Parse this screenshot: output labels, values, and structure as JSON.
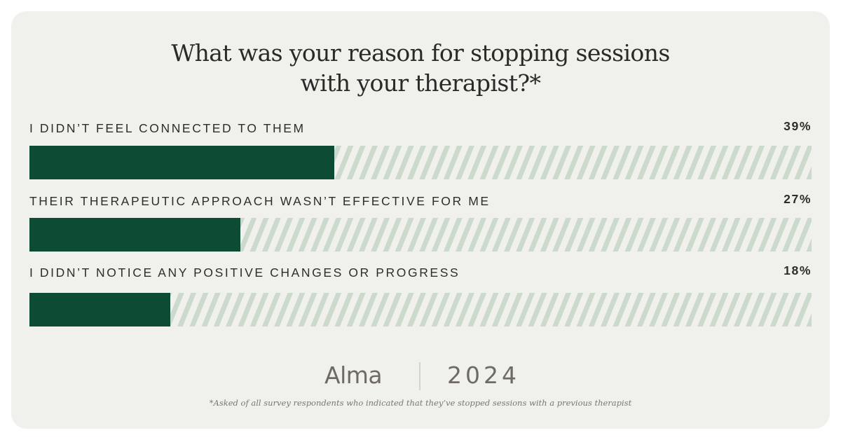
{
  "card": {
    "background": "#f0f1ed"
  },
  "title": {
    "line1": "What was your reason for stopping sessions",
    "line2": "with your therapist?*"
  },
  "colors": {
    "fill": "#0d4b35",
    "stripe": "#cbdacc"
  },
  "rows": [
    {
      "label": "I DIDN’T FEEL CONNECTED TO THEM",
      "value": "39%",
      "pct": 39
    },
    {
      "label": "THEIR THERAPEUTIC APPROACH WASN’T EFFECTIVE FOR ME",
      "value": "27%",
      "pct": 27
    },
    {
      "label": "I DIDN’T NOTICE ANY POSITIVE CHANGES OR PROGRESS",
      "value": "18%",
      "pct": 18
    }
  ],
  "footer": {
    "brand": "Alma",
    "year": "2024",
    "footnote": "*Asked of all survey respondents who indicated that they’ve stopped sessions with a previous therapist"
  },
  "chart_data": {
    "type": "bar",
    "orientation": "horizontal",
    "title": "What was your reason for stopping sessions with your therapist?*",
    "categories": [
      "I didn’t feel connected to them",
      "Their therapeutic approach wasn’t effective for me",
      "I didn’t notice any positive changes or progress"
    ],
    "values": [
      39,
      27,
      18
    ],
    "value_labels": [
      "39%",
      "27%",
      "18%"
    ],
    "xlabel": "",
    "ylabel": "",
    "xlim": [
      0,
      100
    ],
    "grid": false,
    "legend": null,
    "annotations": [
      "Alma | 2024",
      "*Asked of all survey respondents who indicated that they’ve stopped sessions with a previous therapist"
    ]
  }
}
